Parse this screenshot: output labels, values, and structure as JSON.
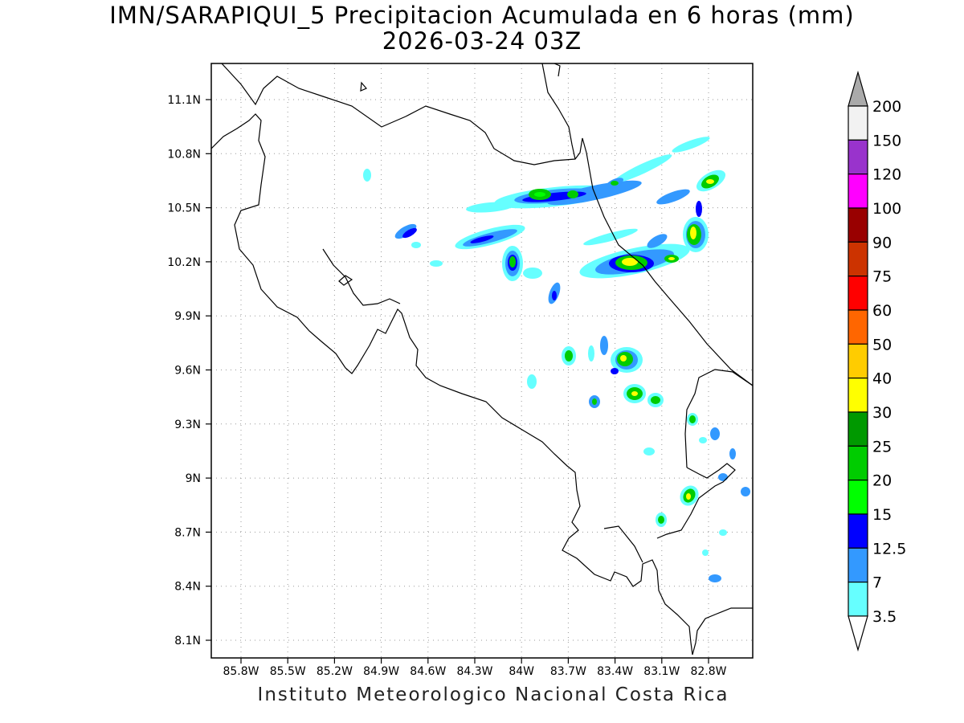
{
  "title_line1": "IMN/SARAPIQUI_5 Precipitacion Acumulada en 6 horas (mm)",
  "title_line2": "2026-03-24 03Z",
  "credit": "Instituto Meteorologico Nacional Costa Rica",
  "lat_labels": [
    "11.1N",
    "10.8N",
    "10.5N",
    "10.2N",
    "9.9N",
    "9.6N",
    "9.3N",
    "9N",
    "8.7N",
    "8.4N",
    "8.1N"
  ],
  "lon_labels": [
    "85.8W",
    "85.5W",
    "85.2W",
    "84.9W",
    "84.6W",
    "84.3W",
    "84W",
    "83.7W",
    "83.4W",
    "83.1W",
    "82.8W"
  ],
  "colorbar": {
    "labels": [
      "200",
      "150",
      "120",
      "100",
      "90",
      "75",
      "60",
      "50",
      "40",
      "30",
      "25",
      "20",
      "15",
      "12.5",
      "7",
      "3.5"
    ],
    "colors": [
      "#f2f2f2",
      "#9933cc",
      "#ff00ff",
      "#990000",
      "#cc3300",
      "#ff0000",
      "#ff6600",
      "#ffcc00",
      "#ffff00",
      "#009900",
      "#00cc00",
      "#00ff00",
      "#0000ff",
      "#3399ff",
      "#66ffff"
    ],
    "top_arrow_color": "#aaaaaa",
    "bottom_arrow_color": "#ffffff"
  },
  "colors": {
    "cyan": "#66ffff",
    "light_blue": "#3399ff",
    "blue": "#0000ff",
    "green": "#00cc00",
    "dark_green": "#009900",
    "yellow": "#ffff00"
  }
}
